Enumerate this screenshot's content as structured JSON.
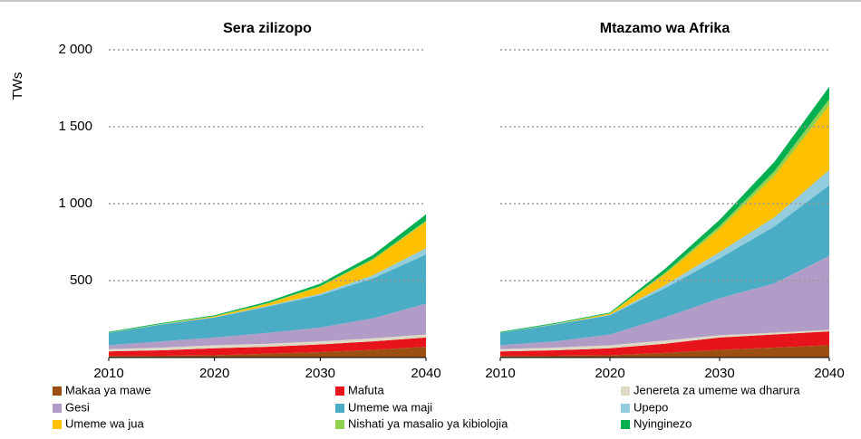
{
  "chart_data": [
    {
      "type": "area",
      "title": "Sera zilizopo",
      "ylabel": "TWs",
      "x": [
        2010,
        2015,
        2020,
        2025,
        2030,
        2035,
        2040
      ],
      "xlim": [
        2010,
        2040
      ],
      "xticks": [
        2010,
        2020,
        2030,
        2040
      ],
      "ylim": [
        0,
        2000
      ],
      "yticks": [
        500,
        {
          "value": 1000,
          "label": "1 000"
        },
        {
          "value": 1500,
          "label": "1 500"
        },
        {
          "value": 2000,
          "label": "2 000"
        }
      ],
      "grid": true,
      "series": [
        {
          "name": "Makaa ya mawe",
          "color": "#9c4f13",
          "values": [
            10,
            12,
            15,
            25,
            35,
            50,
            70
          ]
        },
        {
          "name": "Mafuta",
          "color": "#e8141b",
          "values": [
            30,
            35,
            45,
            45,
            50,
            55,
            60
          ]
        },
        {
          "name": "Jenereta za umeme wa dharura",
          "color": "#ddd9c4",
          "values": [
            15,
            18,
            20,
            20,
            20,
            20,
            20
          ]
        },
        {
          "name": "Gesi",
          "color": "#b09cc6",
          "values": [
            25,
            40,
            50,
            70,
            90,
            130,
            200
          ]
        },
        {
          "name": "Umeme wa maji",
          "color": "#4bacc6",
          "values": [
            80,
            110,
            130,
            170,
            210,
            260,
            320
          ]
        },
        {
          "name": "Upepo",
          "color": "#93cddd",
          "values": [
            0,
            1,
            2,
            5,
            10,
            20,
            40
          ]
        },
        {
          "name": "Umeme wa jua",
          "color": "#ffc000",
          "values": [
            0,
            1,
            5,
            15,
            45,
            100,
            170
          ]
        },
        {
          "name": "Nishati ya masalio ya kibiolojia",
          "color": "#92d050",
          "values": [
            2,
            2,
            3,
            3,
            5,
            7,
            10
          ]
        },
        {
          "name": "Nyinginezo",
          "color": "#00b050",
          "values": [
            5,
            5,
            5,
            10,
            15,
            25,
            40
          ]
        }
      ]
    },
    {
      "type": "area",
      "title": "Mtazamo wa Afrika",
      "x": [
        2010,
        2015,
        2020,
        2025,
        2030,
        2035,
        2040
      ],
      "xlim": [
        2010,
        2040
      ],
      "xticks": [
        2010,
        2020,
        2030,
        2040
      ],
      "ylim": [
        0,
        2000
      ],
      "yticks": [
        500,
        1000,
        1500,
        2000
      ],
      "grid": true,
      "series": [
        {
          "values": [
            10,
            12,
            15,
            30,
            50,
            65,
            80
          ]
        },
        {
          "values": [
            30,
            35,
            45,
            60,
            80,
            85,
            90
          ]
        },
        {
          "values": [
            15,
            18,
            20,
            20,
            15,
            12,
            10
          ]
        },
        {
          "values": [
            25,
            40,
            70,
            150,
            240,
            320,
            480
          ]
        },
        {
          "values": [
            80,
            110,
            125,
            190,
            260,
            370,
            460
          ]
        },
        {
          "values": [
            0,
            1,
            3,
            20,
            40,
            60,
            100
          ]
        },
        {
          "values": [
            0,
            1,
            7,
            70,
            150,
            270,
            420
          ]
        },
        {
          "values": [
            2,
            2,
            3,
            10,
            20,
            30,
            40
          ]
        },
        {
          "values": [
            5,
            5,
            5,
            25,
            40,
            60,
            80
          ]
        }
      ]
    }
  ]
}
